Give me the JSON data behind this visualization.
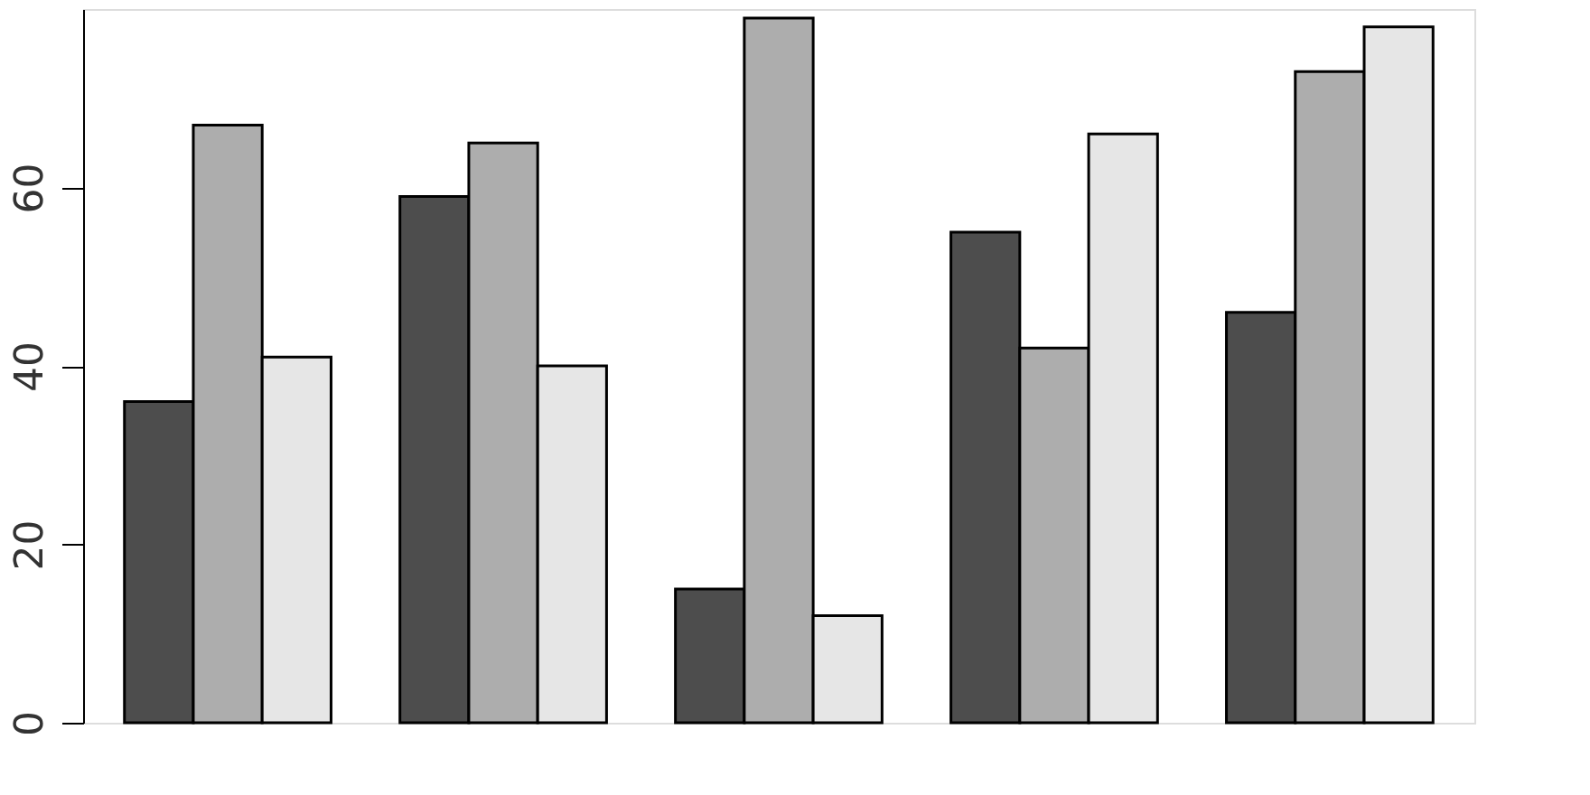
{
  "chart_data": {
    "type": "bar",
    "categories": [
      null,
      null,
      null,
      null,
      null
    ],
    "series": [
      {
        "color": "#4d4d4d",
        "values": [
          36,
          59,
          15,
          55,
          46
        ]
      },
      {
        "color": "#adadad",
        "values": [
          67,
          65,
          79,
          42,
          73
        ]
      },
      {
        "color": "#e6e6e6",
        "values": [
          41,
          40,
          12,
          66,
          78
        ]
      }
    ],
    "ylim": [
      0,
      80
    ],
    "yticks": [
      0,
      20,
      40,
      60
    ],
    "grid": false,
    "tick_labels": "y"
  }
}
